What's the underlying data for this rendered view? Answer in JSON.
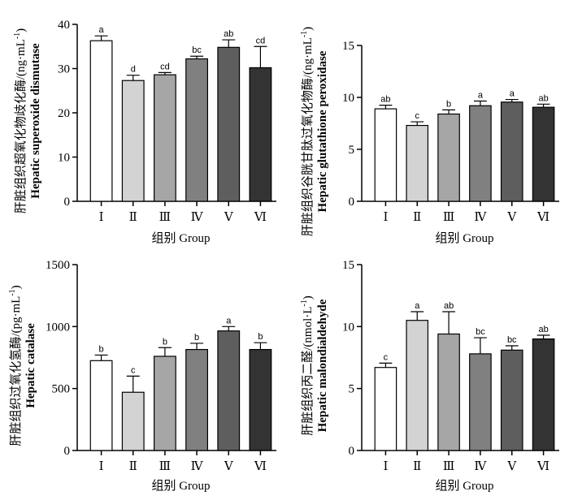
{
  "chart_data": [
    {
      "type": "bar",
      "categories": [
        "Ⅰ",
        "Ⅱ",
        "Ⅲ",
        "Ⅳ",
        "Ⅴ",
        "Ⅵ"
      ],
      "values": [
        36.3,
        27.3,
        28.6,
        32.2,
        34.8,
        30.2
      ],
      "errors": [
        1.1,
        1.2,
        0.5,
        0.6,
        1.7,
        4.8
      ],
      "letters": [
        "a",
        "d",
        "cd",
        "bc",
        "ab",
        "cd"
      ],
      "ylim": [
        0,
        40
      ],
      "yticks": [
        "0",
        "10",
        "20",
        "30",
        "40"
      ],
      "xlabel": "组别 Group",
      "ylabel_cn": "肝脏组织超氧化物歧化酶/(ng·mL",
      "ylabel_sup": "-1",
      "ylabel_close": ")",
      "ylabel_en": "Hepatic superoxide dismutase"
    },
    {
      "type": "bar",
      "categories": [
        "Ⅰ",
        "Ⅱ",
        "Ⅲ",
        "Ⅳ",
        "Ⅴ",
        "Ⅵ"
      ],
      "values": [
        8.9,
        7.3,
        8.4,
        9.2,
        9.55,
        9.05
      ],
      "errors": [
        0.35,
        0.35,
        0.4,
        0.45,
        0.25,
        0.3
      ],
      "letters": [
        "ab",
        "c",
        "b",
        "a",
        "a",
        "ab"
      ],
      "ylim": [
        0,
        15
      ],
      "yticks": [
        "0",
        "5",
        "10",
        "15"
      ],
      "xlabel": "组别 Group",
      "ylabel_cn": "肝脏组织谷胱甘肽过氧化物酶/(ng·mL",
      "ylabel_sup": "-1",
      "ylabel_close": ")",
      "ylabel_en": "Hepatic glutathione peroxidase"
    },
    {
      "type": "bar",
      "categories": [
        "Ⅰ",
        "Ⅱ",
        "Ⅲ",
        "Ⅳ",
        "Ⅴ",
        "Ⅵ"
      ],
      "values": [
        725,
        470,
        760,
        815,
        965,
        815
      ],
      "errors": [
        45,
        130,
        70,
        50,
        35,
        55
      ],
      "letters": [
        "b",
        "c",
        "b",
        "b",
        "a",
        "b"
      ],
      "ylim": [
        0,
        1500
      ],
      "yticks": [
        "0",
        "500",
        "1000",
        "1500"
      ],
      "xlabel": "组别 Group",
      "ylabel_cn": "肝脏组织过氧化氢酶/(pg·mL",
      "ylabel_sup": "-1",
      "ylabel_close": ")",
      "ylabel_en": "Hepatic catalase"
    },
    {
      "type": "bar",
      "categories": [
        "Ⅰ",
        "Ⅱ",
        "Ⅲ",
        "Ⅳ",
        "Ⅴ",
        "Ⅵ"
      ],
      "values": [
        6.7,
        10.5,
        9.4,
        7.8,
        8.1,
        9.0
      ],
      "errors": [
        0.35,
        0.7,
        1.8,
        1.3,
        0.35,
        0.3
      ],
      "letters": [
        "c",
        "a",
        "ab",
        "bc",
        "bc",
        "ab"
      ],
      "ylim": [
        0,
        15
      ],
      "yticks": [
        "0",
        "5",
        "10",
        "15"
      ],
      "xlabel": "组别 Group",
      "ylabel_cn": "肝脏组织丙二醛/(nmol·L",
      "ylabel_sup": "-1",
      "ylabel_close": ")",
      "ylabel_en": "Hepatic malondialdehyde"
    }
  ],
  "bar_colors": [
    "#ffffff",
    "#d3d3d3",
    "#a6a6a6",
    "#808080",
    "#5e5e5e",
    "#333333"
  ]
}
